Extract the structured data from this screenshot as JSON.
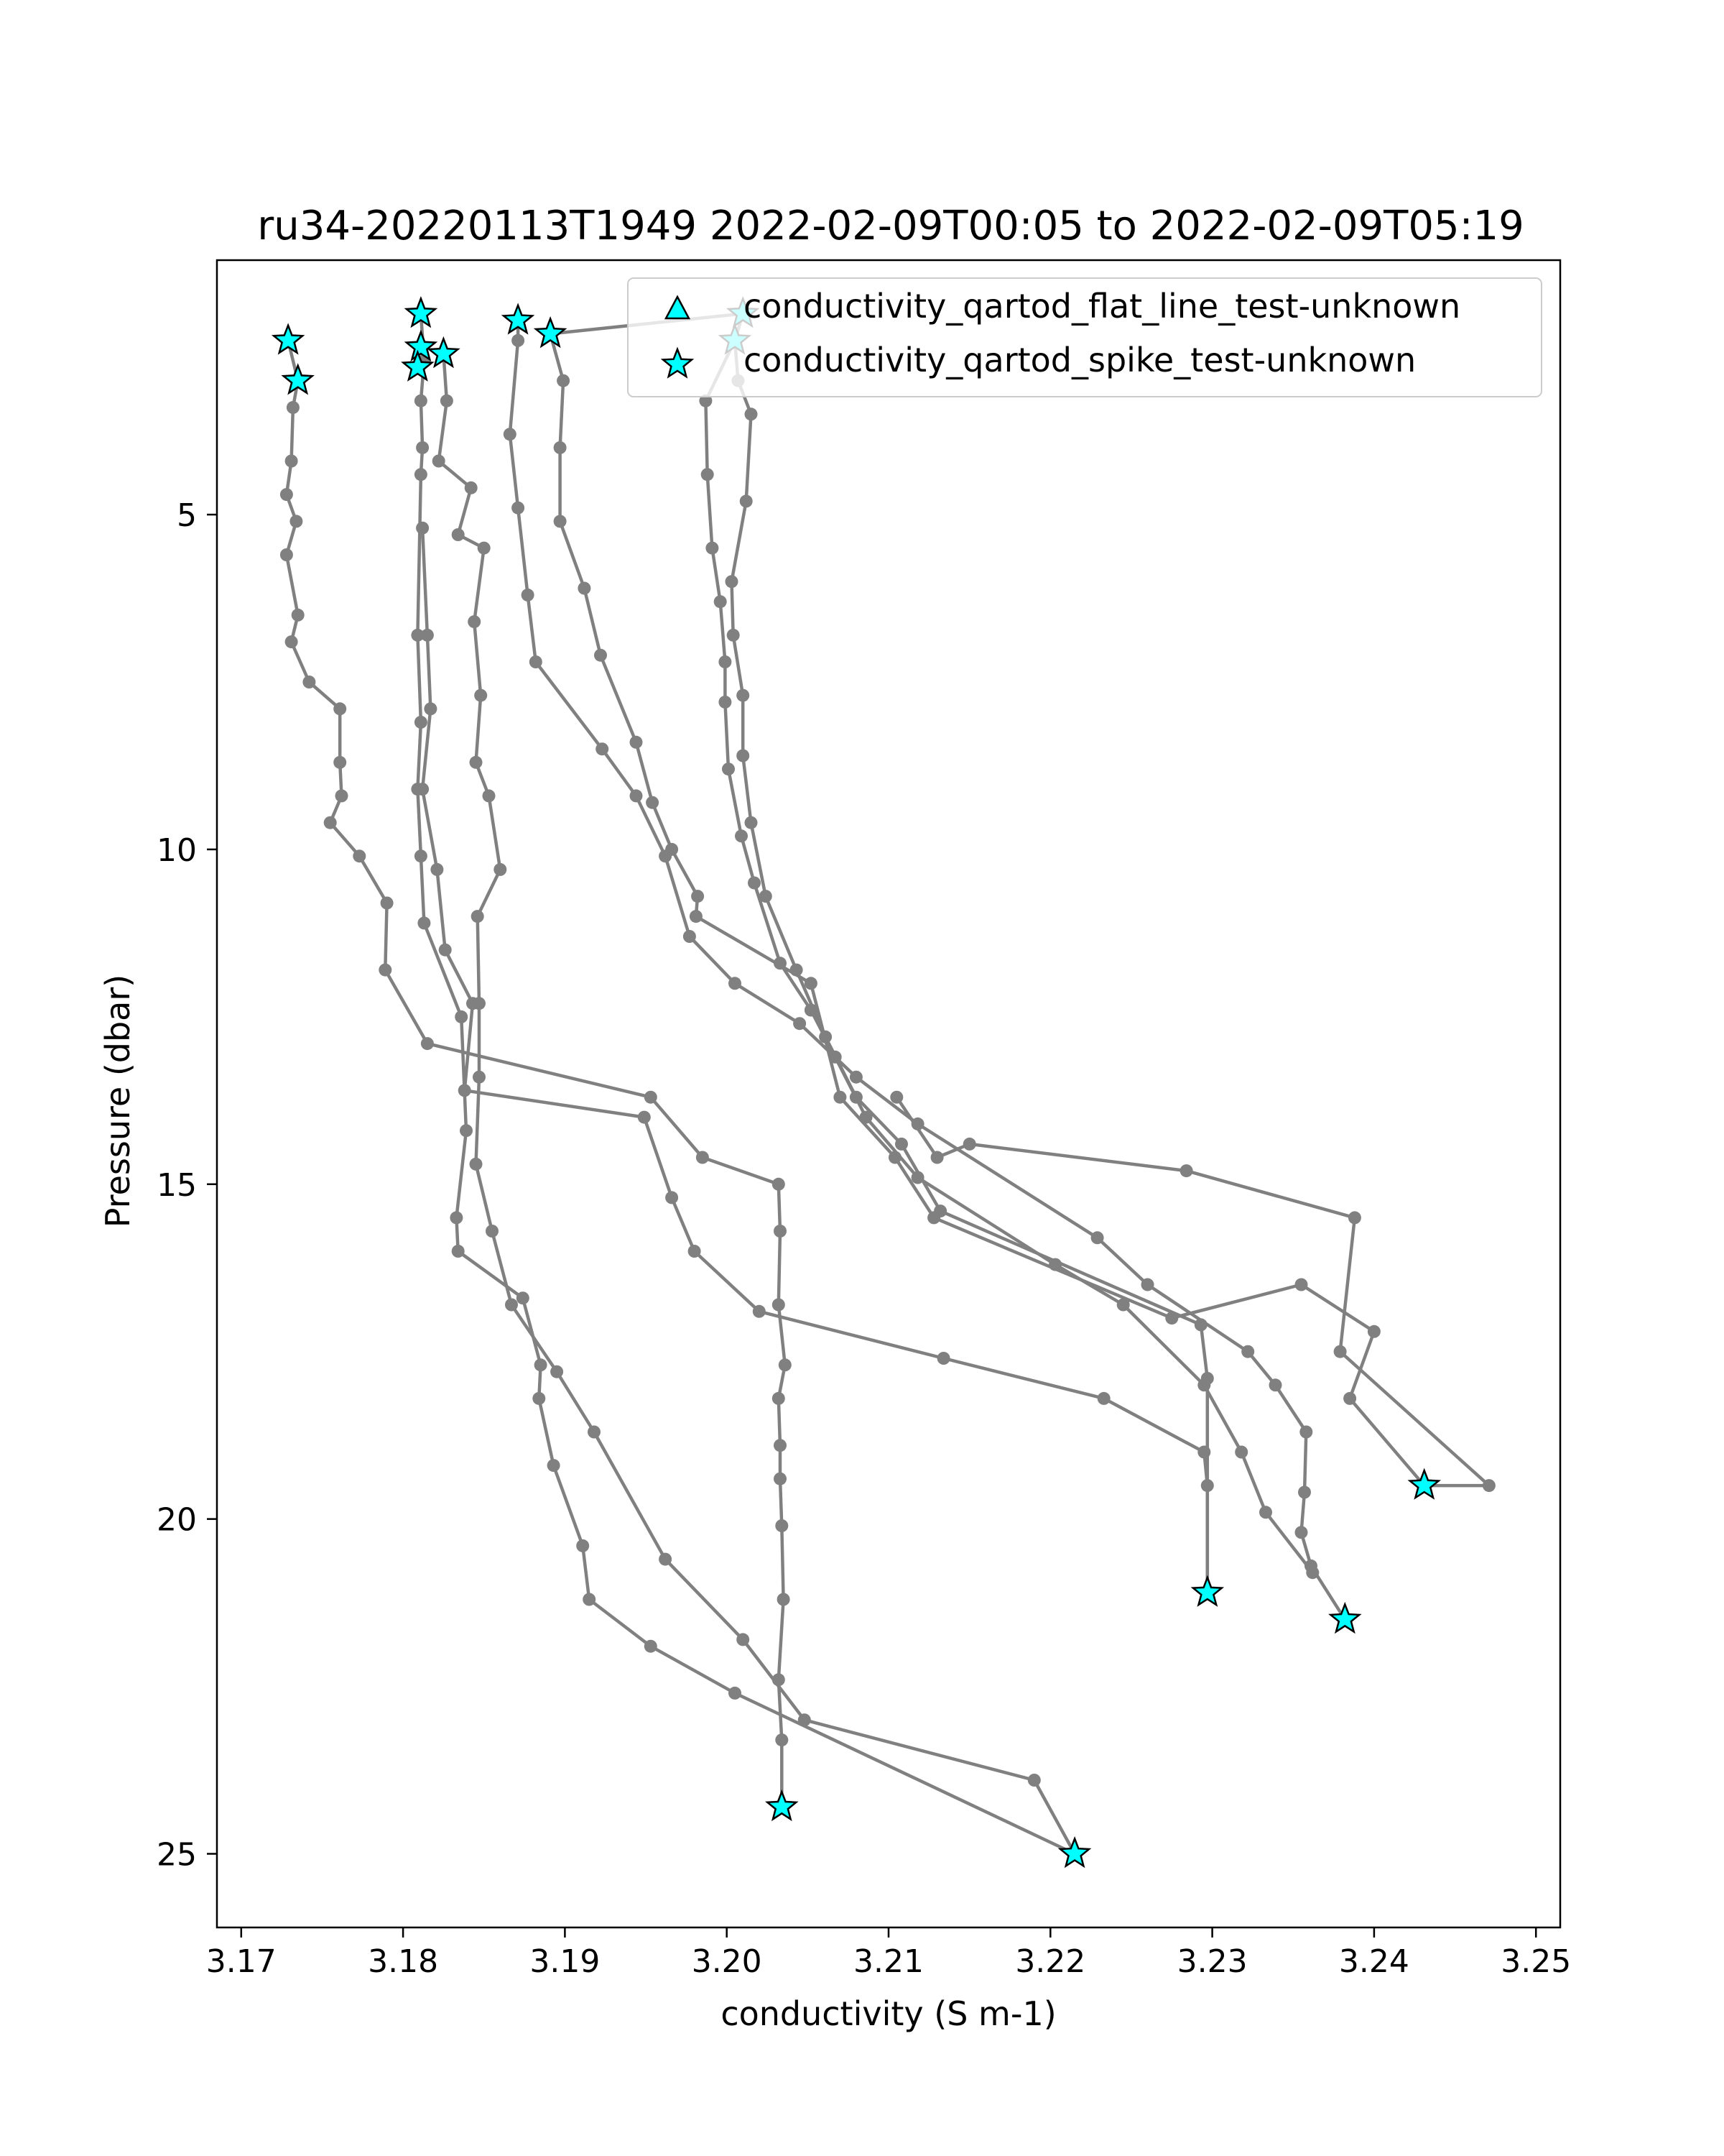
{
  "chart_data": {
    "type": "line",
    "title": "ru34-20220113T1949 2022-02-09T00:05 to 2022-02-09T05:19",
    "xlabel": "conductivity (S m-1)",
    "ylabel": "Pressure (dbar)",
    "xlim": [
      3.1685,
      3.2515
    ],
    "ylim": [
      26.1,
      1.2
    ],
    "y_inverted": true,
    "grid": false,
    "xticks": [
      3.17,
      3.18,
      3.19,
      3.2,
      3.21,
      3.22,
      3.23,
      3.24,
      3.25
    ],
    "xtick_labels": [
      "3.17",
      "3.18",
      "3.19",
      "3.20",
      "3.21",
      "3.22",
      "3.23",
      "3.24",
      "3.25"
    ],
    "yticks": [
      5,
      10,
      15,
      20,
      25
    ],
    "ytick_labels": [
      "5",
      "10",
      "15",
      "20",
      "25"
    ],
    "legend_position": "upper-right",
    "colors": {
      "line": "#808080",
      "marker_fill": "#00ffff",
      "marker_edge": "#000000"
    },
    "legend": [
      {
        "label": "conductivity_qartod_flat_line_test-unknown",
        "marker": "triangle"
      },
      {
        "label": "conductivity_qartod_spike_test-unknown",
        "marker": "star"
      }
    ],
    "series": [
      {
        "points": [
          [
            3.1729,
            2.4
          ],
          [
            3.1735,
            3.0
          ],
          [
            3.1732,
            3.4
          ],
          [
            3.1731,
            4.2
          ],
          [
            3.1728,
            4.7
          ],
          [
            3.1734,
            5.1
          ],
          [
            3.1728,
            5.6
          ],
          [
            3.1735,
            6.5
          ],
          [
            3.1731,
            6.9
          ],
          [
            3.1742,
            7.5
          ],
          [
            3.1761,
            7.9
          ],
          [
            3.1761,
            8.7
          ],
          [
            3.1762,
            9.2
          ],
          [
            3.1755,
            9.6
          ],
          [
            3.1773,
            10.1
          ],
          [
            3.179,
            10.8
          ],
          [
            3.1789,
            11.8
          ],
          [
            3.1815,
            12.9
          ],
          [
            3.1953,
            13.7
          ],
          [
            3.1985,
            14.6
          ],
          [
            3.2032,
            15.0
          ],
          [
            3.2033,
            15.7
          ],
          [
            3.2032,
            16.8
          ],
          [
            3.2036,
            17.7
          ],
          [
            3.2032,
            18.2
          ],
          [
            3.2033,
            18.9
          ],
          [
            3.2033,
            19.4
          ],
          [
            3.2034,
            20.1
          ],
          [
            3.2035,
            21.2
          ],
          [
            3.2032,
            22.4
          ],
          [
            3.2034,
            23.3
          ],
          [
            3.2034,
            24.3
          ]
        ],
        "stars": [
          [
            3.1729,
            2.4
          ],
          [
            3.1735,
            3.0
          ],
          [
            3.2034,
            24.3
          ]
        ]
      },
      {
        "points": [
          [
            3.1811,
            2.0
          ],
          [
            3.1813,
            2.7
          ],
          [
            3.1811,
            3.3
          ],
          [
            3.1812,
            4.0
          ],
          [
            3.1811,
            4.4
          ],
          [
            3.1809,
            6.8
          ],
          [
            3.1811,
            8.1
          ],
          [
            3.1809,
            9.1
          ],
          [
            3.1811,
            10.1
          ],
          [
            3.1813,
            11.1
          ],
          [
            3.1836,
            12.5
          ],
          [
            3.1839,
            14.2
          ],
          [
            3.1833,
            15.5
          ],
          [
            3.1834,
            16.0
          ],
          [
            3.1874,
            16.7
          ],
          [
            3.1885,
            17.7
          ],
          [
            3.1884,
            18.2
          ],
          [
            3.1893,
            19.2
          ],
          [
            3.1911,
            20.4
          ],
          [
            3.1915,
            21.2
          ],
          [
            3.1953,
            21.9
          ],
          [
            3.2005,
            22.6
          ],
          [
            3.2215,
            25.0
          ]
        ],
        "stars": [
          [
            3.1811,
            2.0
          ],
          [
            3.1811,
            2.5
          ],
          [
            3.1809,
            2.8
          ],
          [
            3.1825,
            2.6
          ],
          [
            3.2215,
            25.0
          ]
        ]
      },
      {
        "points": [
          [
            3.1825,
            2.6
          ],
          [
            3.1827,
            3.3
          ],
          [
            3.1822,
            4.2
          ],
          [
            3.1842,
            4.6
          ],
          [
            3.1834,
            5.3
          ],
          [
            3.185,
            5.5
          ],
          [
            3.1844,
            6.6
          ],
          [
            3.1848,
            7.7
          ],
          [
            3.1845,
            8.7
          ],
          [
            3.1853,
            9.2
          ],
          [
            3.186,
            10.3
          ],
          [
            3.1846,
            11.0
          ],
          [
            3.1847,
            12.3
          ],
          [
            3.1847,
            13.4
          ],
          [
            3.1845,
            14.7
          ],
          [
            3.1855,
            15.7
          ],
          [
            3.1867,
            16.8
          ],
          [
            3.1895,
            17.8
          ],
          [
            3.1918,
            18.7
          ],
          [
            3.1962,
            20.6
          ],
          [
            3.201,
            21.8
          ],
          [
            3.2048,
            23.0
          ],
          [
            3.219,
            23.9
          ],
          [
            3.2215,
            25.0
          ]
        ],
        "stars": []
      },
      {
        "points": [
          [
            3.1871,
            2.1
          ],
          [
            3.1871,
            2.4
          ],
          [
            3.1866,
            3.8
          ],
          [
            3.1871,
            4.9
          ],
          [
            3.1877,
            6.2
          ],
          [
            3.1882,
            7.2
          ],
          [
            3.1923,
            8.5
          ],
          [
            3.1944,
            9.2
          ],
          [
            3.1962,
            10.1
          ],
          [
            3.1977,
            11.3
          ],
          [
            3.2005,
            12.0
          ],
          [
            3.2045,
            12.6
          ],
          [
            3.208,
            13.4
          ],
          [
            3.2118,
            14.1
          ],
          [
            3.2229,
            15.8
          ],
          [
            3.226,
            16.5
          ],
          [
            3.2322,
            17.5
          ],
          [
            3.2339,
            18.0
          ],
          [
            3.2358,
            18.7
          ],
          [
            3.2357,
            19.6
          ],
          [
            3.2355,
            20.2
          ],
          [
            3.2361,
            20.7
          ],
          [
            3.2382,
            21.5
          ]
        ],
        "stars": [
          [
            3.1871,
            2.1
          ],
          [
            3.2382,
            21.5
          ]
        ]
      },
      {
        "points": [
          [
            3.1891,
            2.3
          ],
          [
            3.1899,
            3.0
          ],
          [
            3.1897,
            4.0
          ],
          [
            3.1897,
            5.1
          ],
          [
            3.1912,
            6.1
          ],
          [
            3.1922,
            7.1
          ],
          [
            3.1944,
            8.4
          ],
          [
            3.1954,
            9.3
          ],
          [
            3.1966,
            10.0
          ],
          [
            3.1982,
            10.7
          ],
          [
            3.1981,
            11.0
          ],
          [
            3.2052,
            12.0
          ],
          [
            3.207,
            13.7
          ],
          [
            3.2104,
            14.6
          ],
          [
            3.2128,
            15.5
          ],
          [
            3.2275,
            17.0
          ],
          [
            3.2355,
            16.5
          ],
          [
            3.24,
            17.2
          ],
          [
            3.2385,
            18.2
          ],
          [
            3.2431,
            19.5
          ],
          [
            3.2471,
            19.5
          ],
          [
            3.2379,
            17.5
          ],
          [
            3.2388,
            15.5
          ],
          [
            3.2284,
            14.8
          ],
          [
            3.215,
            14.4
          ],
          [
            3.213,
            14.6
          ],
          [
            3.2105,
            13.7
          ]
        ],
        "stars": [
          [
            3.1891,
            2.3
          ],
          [
            3.2431,
            19.5
          ]
        ]
      },
      {
        "points": [
          [
            3.1891,
            2.3
          ],
          [
            3.201,
            2.0
          ],
          [
            3.2005,
            2.4
          ],
          [
            3.2007,
            3.0
          ],
          [
            3.2015,
            3.5
          ],
          [
            3.2012,
            4.8
          ],
          [
            3.2003,
            6.0
          ],
          [
            3.2004,
            6.8
          ],
          [
            3.201,
            7.7
          ],
          [
            3.201,
            8.6
          ],
          [
            3.2015,
            9.6
          ],
          [
            3.2024,
            10.7
          ],
          [
            3.2043,
            11.8
          ],
          [
            3.2061,
            12.8
          ],
          [
            3.208,
            13.7
          ],
          [
            3.2108,
            14.4
          ],
          [
            3.2132,
            15.4
          ],
          [
            3.2293,
            17.1
          ],
          [
            3.2297,
            17.9
          ],
          [
            3.2297,
            21.1
          ]
        ],
        "stars": [
          [
            3.201,
            2.0
          ],
          [
            3.2005,
            2.4
          ],
          [
            3.2297,
            21.1
          ]
        ]
      },
      {
        "points": [
          [
            3.2005,
            2.4
          ],
          [
            3.1987,
            3.3
          ],
          [
            3.1988,
            4.4
          ],
          [
            3.1991,
            5.5
          ],
          [
            3.1996,
            6.3
          ],
          [
            3.1999,
            7.2
          ],
          [
            3.1999,
            7.8
          ],
          [
            3.2001,
            8.8
          ],
          [
            3.2009,
            9.8
          ],
          [
            3.2017,
            10.5
          ],
          [
            3.2033,
            11.7
          ],
          [
            3.2052,
            12.4
          ],
          [
            3.2067,
            13.1
          ],
          [
            3.2086,
            14.0
          ],
          [
            3.2118,
            14.9
          ],
          [
            3.2203,
            16.2
          ],
          [
            3.2245,
            16.8
          ],
          [
            3.2295,
            18.0
          ],
          [
            3.2318,
            19.0
          ],
          [
            3.2333,
            19.9
          ],
          [
            3.2362,
            20.8
          ]
        ],
        "stars": []
      },
      {
        "points": [
          [
            3.1812,
            5.2
          ],
          [
            3.1815,
            6.8
          ],
          [
            3.1817,
            7.9
          ],
          [
            3.1812,
            9.1
          ],
          [
            3.1821,
            10.3
          ],
          [
            3.1826,
            11.5
          ],
          [
            3.1843,
            12.3
          ],
          [
            3.1838,
            13.6
          ],
          [
            3.1949,
            14.0
          ],
          [
            3.1966,
            15.2
          ],
          [
            3.198,
            16.0
          ],
          [
            3.202,
            16.9
          ],
          [
            3.2134,
            17.6
          ],
          [
            3.2233,
            18.2
          ],
          [
            3.2295,
            19.0
          ],
          [
            3.2297,
            19.5
          ],
          [
            3.2297,
            21.1
          ]
        ],
        "stars": []
      }
    ]
  }
}
